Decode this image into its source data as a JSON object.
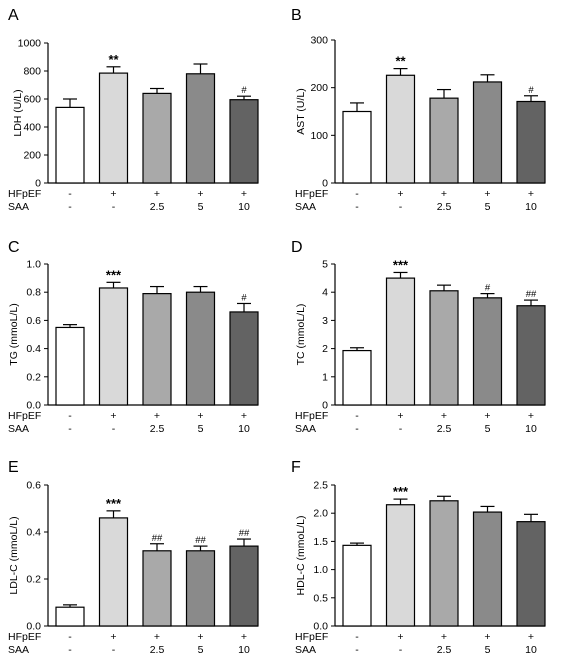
{
  "chart_data": [
    {
      "panel": "A",
      "type": "bar",
      "ylabel": "LDH (U/L)",
      "ylim": [
        0,
        1000
      ],
      "yticks": [
        0,
        200,
        400,
        600,
        800,
        1000
      ],
      "ytick_labels": [
        "0",
        "200",
        "400",
        "600",
        "800",
        "1000"
      ],
      "values": [
        540,
        785,
        640,
        780,
        595
      ],
      "errors": [
        60,
        45,
        35,
        70,
        25
      ],
      "sig": [
        "",
        "**",
        "",
        "",
        "#"
      ]
    },
    {
      "panel": "B",
      "type": "bar",
      "ylabel": "AST (U/L)",
      "ylim": [
        0,
        300
      ],
      "yticks": [
        0,
        100,
        200,
        300
      ],
      "ytick_labels": [
        "0",
        "100",
        "200",
        "300"
      ],
      "values": [
        150,
        226,
        178,
        212,
        171
      ],
      "errors": [
        18,
        14,
        18,
        15,
        12
      ],
      "sig": [
        "",
        "**",
        "",
        "",
        "#"
      ]
    },
    {
      "panel": "C",
      "type": "bar",
      "ylabel": "TG (mmoL/L)",
      "ylim": [
        0,
        1.0
      ],
      "yticks": [
        0,
        0.2,
        0.4,
        0.6,
        0.8,
        1.0
      ],
      "ytick_labels": [
        "0.0",
        "0.2",
        "0.4",
        "0.6",
        "0.8",
        "1.0"
      ],
      "values": [
        0.55,
        0.83,
        0.79,
        0.8,
        0.66
      ],
      "errors": [
        0.02,
        0.04,
        0.05,
        0.04,
        0.06
      ],
      "sig": [
        "",
        "***",
        "",
        "",
        "#"
      ]
    },
    {
      "panel": "D",
      "type": "bar",
      "ylabel": "TC (mmoL/L)",
      "ylim": [
        0,
        5
      ],
      "yticks": [
        0,
        1,
        2,
        3,
        4,
        5
      ],
      "ytick_labels": [
        "0",
        "1",
        "2",
        "3",
        "4",
        "5"
      ],
      "values": [
        1.93,
        4.5,
        4.05,
        3.8,
        3.52
      ],
      "errors": [
        0.1,
        0.2,
        0.2,
        0.15,
        0.2
      ],
      "sig": [
        "",
        "***",
        "",
        "#",
        "##"
      ]
    },
    {
      "panel": "E",
      "type": "bar",
      "ylabel": "LDL-C (mmoL/L)",
      "ylim": [
        0,
        0.6
      ],
      "yticks": [
        0,
        0.2,
        0.4,
        0.6
      ],
      "ytick_labels": [
        "0.0",
        "0.2",
        "0.4",
        "0.6"
      ],
      "values": [
        0.08,
        0.46,
        0.32,
        0.32,
        0.34
      ],
      "errors": [
        0.01,
        0.03,
        0.03,
        0.02,
        0.03
      ],
      "sig": [
        "",
        "***",
        "##",
        "##",
        "##"
      ]
    },
    {
      "panel": "F",
      "type": "bar",
      "ylabel": "HDL-C (mmoL/L)",
      "ylim": [
        0,
        2.5
      ],
      "yticks": [
        0,
        0.5,
        1.0,
        1.5,
        2.0,
        2.5
      ],
      "ytick_labels": [
        "0.0",
        "0.5",
        "1.0",
        "1.5",
        "2.0",
        "2.5"
      ],
      "values": [
        1.43,
        2.15,
        2.22,
        2.02,
        1.85
      ],
      "errors": [
        0.04,
        0.1,
        0.08,
        0.1,
        0.13
      ],
      "sig": [
        "",
        "***",
        "",
        "",
        ""
      ]
    }
  ],
  "groups": {
    "row_labels": [
      "HFpEF",
      "SAA"
    ],
    "hfpef": [
      "-",
      "+",
      "+",
      "+",
      "+"
    ],
    "saa": [
      "-",
      "-",
      "2.5",
      "5",
      "10"
    ]
  },
  "bar_colors": [
    "#ffffff",
    "#d9d9d9",
    "#a9a9a9",
    "#8a8a8a",
    "#636363"
  ]
}
